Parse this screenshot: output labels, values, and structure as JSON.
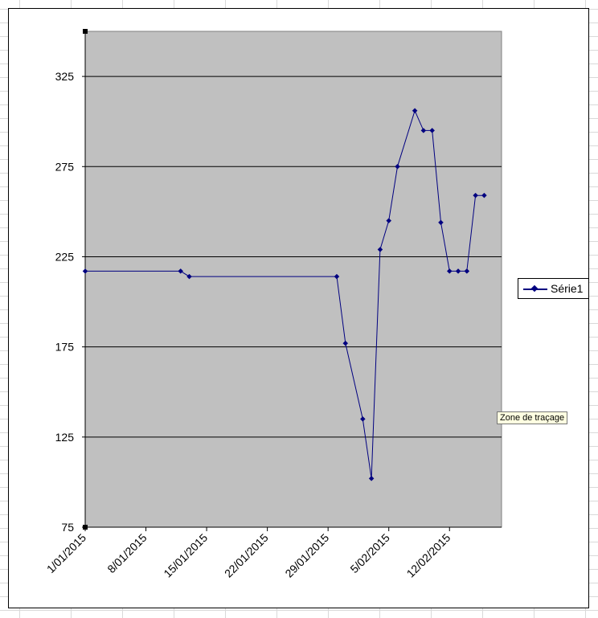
{
  "colors": {
    "plot_background": "#c0c0c0",
    "series_line": "#000080",
    "gridline": "#000000"
  },
  "tooltip": {
    "text": "Zone de traçage"
  },
  "chart_data": {
    "type": "line",
    "title": "",
    "xlabel": "",
    "ylabel": "",
    "xlim": [
      "2015-01-01",
      "2015-02-18"
    ],
    "ylim": [
      75,
      350
    ],
    "y_ticks": [
      75,
      125,
      175,
      225,
      275,
      325
    ],
    "x_ticks": [
      "2015-01-01",
      "2015-01-08",
      "2015-01-15",
      "2015-01-22",
      "2015-01-29",
      "2015-02-05",
      "2015-02-12"
    ],
    "x_tick_labels": [
      "1/01/2015",
      "8/01/2015",
      "15/01/2015",
      "22/01/2015",
      "29/01/2015",
      "5/02/2015",
      "12/02/2015"
    ],
    "grid": "horizontal",
    "legend_position": "right",
    "series": [
      {
        "name": "Série1",
        "x": [
          "2015-01-01",
          "2015-01-12",
          "2015-01-13",
          "2015-01-30",
          "2015-01-31",
          "2015-02-02",
          "2015-02-03",
          "2015-02-04",
          "2015-02-05",
          "2015-02-06",
          "2015-02-08",
          "2015-02-09",
          "2015-02-10",
          "2015-02-11",
          "2015-02-12",
          "2015-02-13",
          "2015-02-14",
          "2015-02-15",
          "2015-02-16"
        ],
        "y": [
          217,
          217,
          214,
          214,
          177,
          135,
          102,
          229,
          245,
          275,
          306,
          295,
          295,
          244,
          217,
          217,
          217,
          259,
          259
        ]
      }
    ]
  }
}
